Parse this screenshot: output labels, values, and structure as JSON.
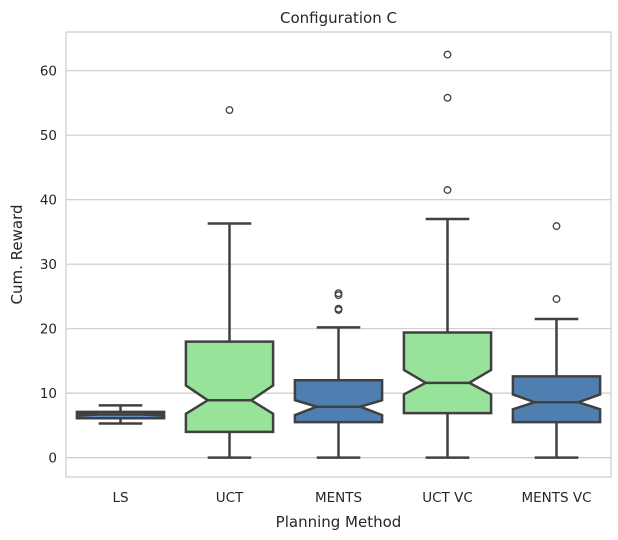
{
  "chart_data": {
    "type": "box",
    "title": "Configuration C",
    "xlabel": "Planning Method",
    "ylabel": "Cum. Reward",
    "ylim": [
      -3,
      66
    ],
    "yticks": [
      0,
      10,
      20,
      30,
      40,
      50,
      60
    ],
    "grid": "horizontal",
    "notched": true,
    "categories": [
      "LS",
      "UCT",
      "MENTS",
      "UCT VC",
      "MENTS VC"
    ],
    "boxes": [
      {
        "category": "LS",
        "color": "#5b8fd1",
        "whisker_low": 5.3,
        "q1": 6.1,
        "median": 6.7,
        "q3": 7.1,
        "whisker_high": 8.1,
        "notch_low": 6.5,
        "notch_high": 6.9,
        "outliers": []
      },
      {
        "category": "UCT",
        "color": "#98e39a",
        "whisker_low": 0,
        "q1": 4.0,
        "median": 8.9,
        "q3": 18.0,
        "whisker_high": 36.3,
        "notch_low": 6.8,
        "notch_high": 11.2,
        "outliers": [
          53.9
        ]
      },
      {
        "category": "MENTS",
        "color": "#4f7fb0",
        "whisker_low": 0,
        "q1": 5.5,
        "median": 7.9,
        "q3": 12.0,
        "whisker_high": 20.2,
        "notch_low": 6.6,
        "notch_high": 8.9,
        "outliers": [
          22.9,
          23.1,
          25.2,
          25.5
        ]
      },
      {
        "category": "UCT VC",
        "color": "#98e39a",
        "whisker_low": 0,
        "q1": 6.9,
        "median": 11.6,
        "q3": 19.4,
        "whisker_high": 37.0,
        "notch_low": 9.8,
        "notch_high": 13.6,
        "outliers": [
          41.5,
          55.8,
          62.5
        ]
      },
      {
        "category": "MENTS VC",
        "color": "#4f7fb0",
        "whisker_low": 0,
        "q1": 5.5,
        "median": 8.6,
        "q3": 12.6,
        "whisker_high": 21.5,
        "notch_low": 7.5,
        "notch_high": 9.8,
        "outliers": [
          24.6,
          35.9
        ]
      }
    ]
  }
}
